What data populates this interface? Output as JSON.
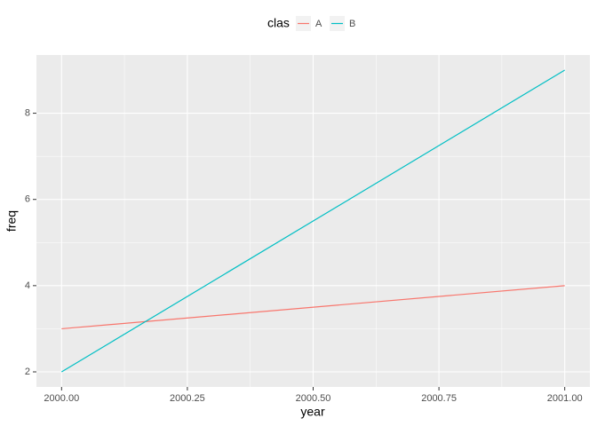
{
  "chart_data": {
    "type": "line",
    "x_label": "year",
    "y_label": "freq",
    "legend_title": "clas",
    "legend_position": "top",
    "x": [
      2000,
      2001
    ],
    "series": [
      {
        "name": "A",
        "color": "#f8766d",
        "values": [
          3,
          4
        ]
      },
      {
        "name": "B",
        "color": "#00bfc4",
        "values": [
          2,
          9
        ]
      }
    ],
    "xlim": [
      1999.95,
      2001.05
    ],
    "xticks": [
      {
        "value": 2000,
        "label": "2000.00"
      },
      {
        "value": 2000.25,
        "label": "2000.25"
      },
      {
        "value": 2000.5,
        "label": "2000.50"
      },
      {
        "value": 2000.75,
        "label": "2000.75"
      },
      {
        "value": 2001,
        "label": "2001.00"
      }
    ],
    "ylim": [
      1.65,
      9.35
    ],
    "yticks": [
      2,
      4,
      6,
      8
    ],
    "grid": true
  }
}
